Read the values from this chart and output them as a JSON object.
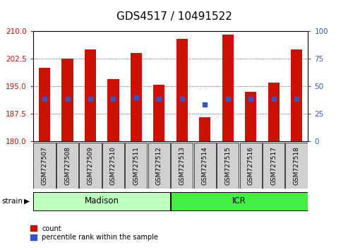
{
  "title": "GDS4517 / 10491522",
  "samples": [
    "GSM727507",
    "GSM727508",
    "GSM727509",
    "GSM727510",
    "GSM727511",
    "GSM727512",
    "GSM727513",
    "GSM727514",
    "GSM727515",
    "GSM727516",
    "GSM727517",
    "GSM727518"
  ],
  "bar_values": [
    200.0,
    202.5,
    205.0,
    197.0,
    204.0,
    195.5,
    208.0,
    186.5,
    209.0,
    193.5,
    196.0,
    205.0
  ],
  "percentile_values": [
    191.5,
    191.5,
    191.5,
    191.5,
    192.0,
    191.5,
    191.5,
    190.0,
    191.5,
    191.5,
    191.5,
    191.5
  ],
  "ylim": [
    180,
    210
  ],
  "yticks_left": [
    180,
    187.5,
    195,
    202.5,
    210
  ],
  "yticks_right": [
    0,
    25,
    50,
    75,
    100
  ],
  "bar_color": "#cc1100",
  "blue_color": "#3355cc",
  "bar_width": 0.5,
  "strain_labels": [
    "Madison",
    "ICR"
  ],
  "strain_colors": [
    "#bbffbb",
    "#44ee44"
  ],
  "legend_count_label": "count",
  "legend_pct_label": "percentile rank within the sample",
  "title_fontsize": 11,
  "tick_fontsize": 7.5,
  "label_fontsize": 6.5
}
